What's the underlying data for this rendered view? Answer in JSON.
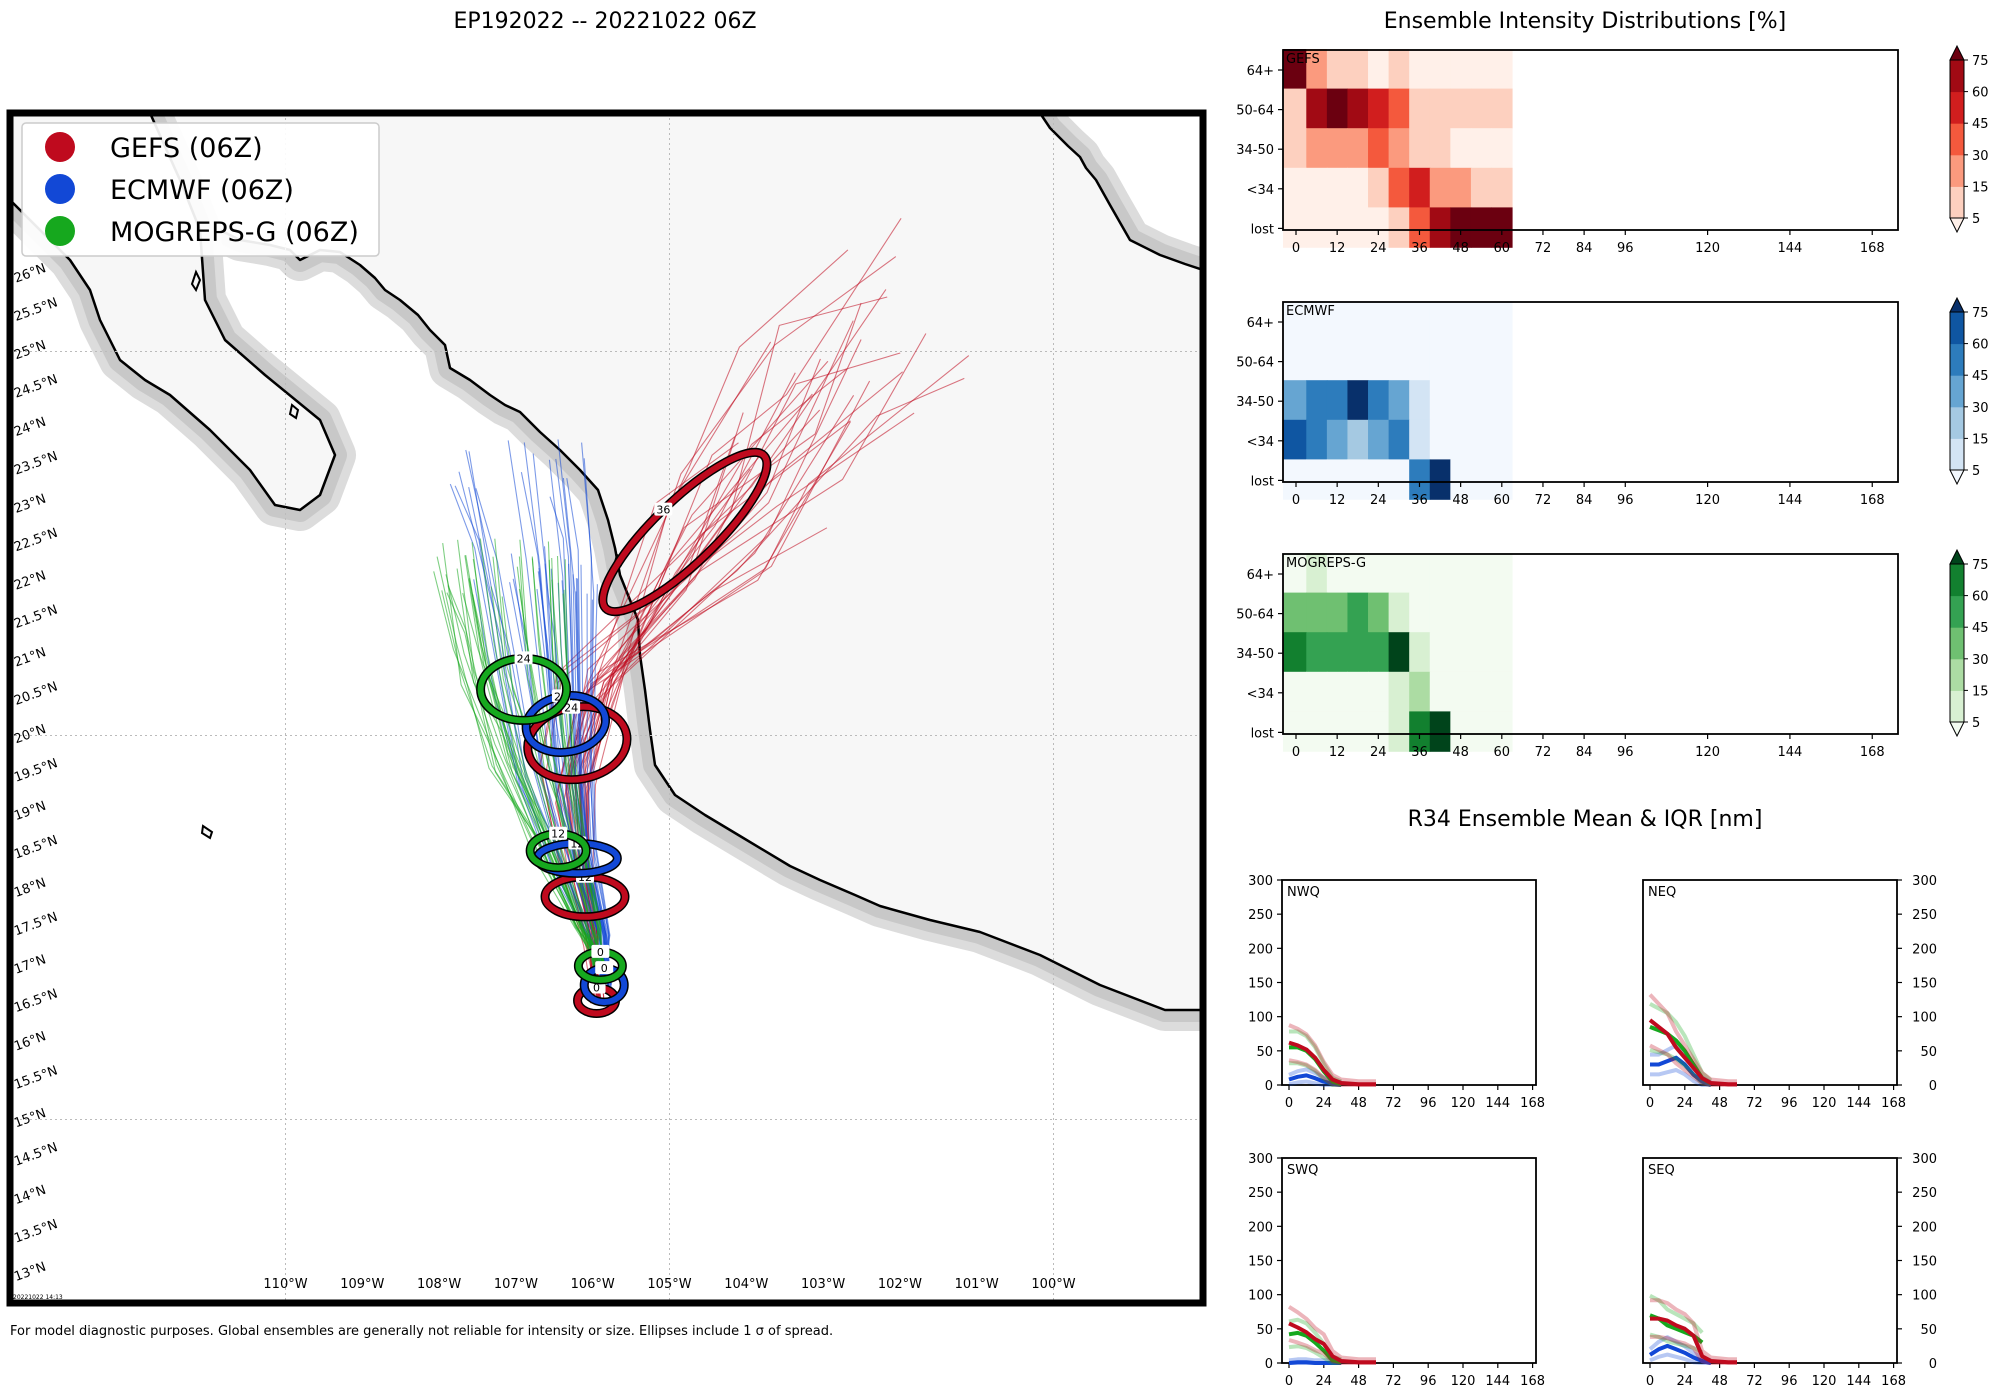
{
  "header": {
    "map_title": "EP192022 -- 20221022 06Z",
    "intensity_title": "Ensemble Intensity Distributions [%]",
    "r34_title": "R34 Ensemble Mean & IQR [nm]"
  },
  "footer": {
    "disclaimer": "For model diagnostic purposes. Global ensembles are generally not reliable for intensity or size. Ellipses include 1 σ of spread.",
    "timestamp": "20221022 14:13"
  },
  "colors": {
    "gefs": "#bf0a1e",
    "ecmwf": "#1248d6",
    "mogreps": "#16a81e",
    "land": "#f7f7f7",
    "land_halo": "#cfcfcf",
    "sea": "#ffffff"
  },
  "map": {
    "legend": [
      {
        "key": "gefs",
        "label": "GEFS (06Z)"
      },
      {
        "key": "ecmwf",
        "label": "ECMWF (06Z)"
      },
      {
        "key": "mogreps",
        "label": "MOGREPS-G (06Z)"
      }
    ],
    "lon_labels": [
      "110°W",
      "109°W",
      "108°W",
      "107°W",
      "106°W",
      "105°W",
      "104°W",
      "103°W",
      "102°W",
      "101°W",
      "100°W"
    ],
    "lat_labels": [
      "13°N",
      "13.5°N",
      "14°N",
      "14.5°N",
      "15°N",
      "15.5°N",
      "16°N",
      "16.5°N",
      "17°N",
      "17.5°N",
      "18°N",
      "18.5°N",
      "19°N",
      "19.5°N",
      "20°N",
      "20.5°N",
      "21°N",
      "21.5°N",
      "22°N",
      "22.5°N",
      "23°N",
      "23.5°N",
      "24°N",
      "24.5°N",
      "25°N",
      "25.5°N",
      "26°N"
    ],
    "ellipses": [
      {
        "model": "gefs",
        "hour": "0",
        "lon": -105.95,
        "lat": 16.55
      },
      {
        "model": "ecmwf",
        "hour": "0",
        "lon": -105.85,
        "lat": 16.75
      },
      {
        "model": "mogreps",
        "hour": "0",
        "lon": -105.9,
        "lat": 17.0
      },
      {
        "model": "gefs",
        "hour": "12",
        "lon": -106.1,
        "lat": 17.9
      },
      {
        "model": "ecmwf",
        "hour": "12",
        "lon": -106.2,
        "lat": 18.4
      },
      {
        "model": "mogreps",
        "hour": "12",
        "lon": -106.45,
        "lat": 18.5
      },
      {
        "model": "gefs",
        "hour": "24",
        "lon": -106.2,
        "lat": 19.9
      },
      {
        "model": "ecmwf",
        "hour": "24",
        "lon": -106.35,
        "lat": 20.15
      },
      {
        "model": "mogreps",
        "hour": "24",
        "lon": -106.9,
        "lat": 20.6
      },
      {
        "model": "gefs",
        "hour": "36",
        "lon": -104.8,
        "lat": 22.65
      }
    ]
  },
  "intensity": {
    "y_categories": [
      "64+",
      "50-64",
      "34-50",
      "<34",
      "lost"
    ],
    "x_ticks": [
      0,
      12,
      24,
      36,
      48,
      60,
      72,
      84,
      96,
      120,
      144,
      168
    ],
    "colorbar_ticks": [
      5,
      15,
      30,
      45,
      60,
      75
    ],
    "hours": [
      0,
      6,
      12,
      18,
      24,
      30,
      36,
      42,
      48,
      54,
      60
    ],
    "panels": [
      {
        "name": "GEFS",
        "palette": "reds",
        "grid": [
          [
            80,
            20,
            10,
            5,
            2,
            10,
            0,
            0,
            0,
            0,
            0
          ],
          [
            5,
            65,
            85,
            70,
            55,
            30,
            5,
            5,
            5,
            5,
            5
          ],
          [
            5,
            15,
            15,
            25,
            30,
            15,
            10,
            5,
            0,
            0,
            0
          ],
          [
            2,
            2,
            2,
            2,
            10,
            35,
            50,
            15,
            15,
            5,
            5
          ],
          [
            2,
            2,
            2,
            2,
            2,
            10,
            35,
            65,
            80,
            80,
            80
          ]
        ]
      },
      {
        "name": "ECMWF",
        "palette": "blues",
        "grid": [
          [
            0,
            0,
            0,
            0,
            0,
            0,
            0,
            0,
            0,
            0,
            0
          ],
          [
            0,
            0,
            0,
            0,
            0,
            0,
            0,
            0,
            0,
            0,
            0
          ],
          [
            30,
            45,
            45,
            75,
            55,
            40,
            10,
            0,
            0,
            0,
            0
          ],
          [
            65,
            45,
            30,
            20,
            30,
            45,
            5,
            0,
            0,
            0,
            0
          ],
          [
            2,
            2,
            2,
            2,
            2,
            2,
            45,
            80,
            0,
            0,
            0
          ]
        ]
      },
      {
        "name": "MOGREPS-G",
        "palette": "greens",
        "grid": [
          [
            0,
            5,
            0,
            0,
            0,
            0,
            0,
            0,
            0,
            0,
            0
          ],
          [
            35,
            35,
            35,
            45,
            35,
            10,
            0,
            0,
            0,
            0,
            0
          ],
          [
            65,
            45,
            45,
            45,
            45,
            75,
            5,
            0,
            0,
            0,
            0
          ],
          [
            0,
            0,
            0,
            0,
            0,
            5,
            15,
            0,
            0,
            0,
            0
          ],
          [
            0,
            0,
            0,
            0,
            0,
            5,
            60,
            80,
            0,
            0,
            0
          ]
        ]
      }
    ]
  },
  "r34": {
    "y_ticks": [
      0,
      50,
      100,
      150,
      200,
      250,
      300
    ],
    "x_ticks": [
      0,
      24,
      48,
      72,
      96,
      120,
      144,
      168
    ],
    "hours": [
      0,
      6,
      12,
      18,
      24,
      30,
      36,
      42,
      48,
      54,
      60
    ],
    "panels": [
      {
        "name": "NWQ",
        "gefs": [
          62,
          58,
          52,
          40,
          22,
          8,
          3,
          2,
          1,
          1,
          1
        ],
        "ecmwf": [
          8,
          12,
          14,
          10,
          5,
          2,
          0,
          null,
          null,
          null,
          null
        ],
        "mogreps": [
          55,
          55,
          50,
          38,
          20,
          5,
          1,
          null,
          null,
          null,
          null
        ]
      },
      {
        "name": "NEQ",
        "gefs": [
          95,
          85,
          75,
          55,
          40,
          25,
          10,
          3,
          2,
          1,
          1
        ],
        "ecmwf": [
          30,
          30,
          35,
          40,
          30,
          15,
          5,
          0,
          null,
          null,
          null
        ],
        "mogreps": [
          85,
          80,
          75,
          65,
          50,
          30,
          10,
          2,
          null,
          null,
          null
        ]
      },
      {
        "name": "SWQ",
        "gefs": [
          58,
          52,
          45,
          35,
          28,
          10,
          3,
          2,
          1,
          1,
          1
        ],
        "ecmwf": [
          0,
          1,
          1,
          0,
          0,
          0,
          0,
          null,
          null,
          null,
          null
        ],
        "mogreps": [
          42,
          44,
          40,
          30,
          18,
          4,
          1,
          null,
          null,
          null,
          null
        ]
      },
      {
        "name": "SEQ",
        "gefs": [
          65,
          65,
          62,
          55,
          50,
          40,
          10,
          3,
          2,
          1,
          1
        ],
        "ecmwf": [
          12,
          20,
          25,
          20,
          15,
          8,
          3,
          0,
          null,
          null,
          null
        ],
        "mogreps": [
          70,
          65,
          55,
          50,
          45,
          40,
          30,
          null,
          null,
          null,
          null
        ]
      }
    ]
  }
}
